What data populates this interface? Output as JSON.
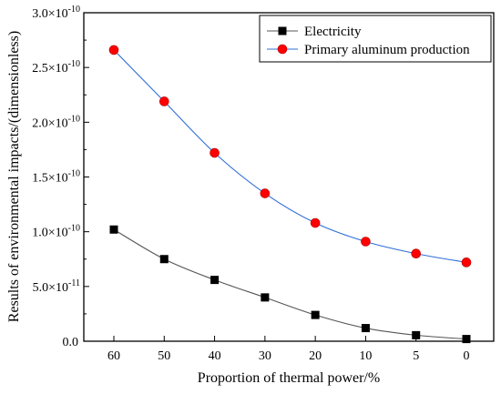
{
  "chart_data": {
    "type": "line",
    "title": "",
    "xlabel": "Proportion of thermal power/%",
    "ylabel": "Results of environmental impacts/(dimensionless)",
    "categories": [
      "60",
      "50",
      "40",
      "30",
      "20",
      "10",
      "5",
      "0"
    ],
    "ylim": [
      0,
      3e-10
    ],
    "yticks": [
      {
        "value": 0,
        "label": "0.0"
      },
      {
        "value": 5e-11,
        "mantissa": "5.0",
        "exp": "-11"
      },
      {
        "value": 1e-10,
        "mantissa": "1.0",
        "exp": "-10"
      },
      {
        "value": 1.5e-10,
        "mantissa": "1.5",
        "exp": "-10"
      },
      {
        "value": 2e-10,
        "mantissa": "2.0",
        "exp": "-10"
      },
      {
        "value": 2.5e-10,
        "mantissa": "2.5",
        "exp": "-10"
      },
      {
        "value": 3e-10,
        "mantissa": "3.0",
        "exp": "-10"
      }
    ],
    "legend_position": "top-right",
    "grid": false,
    "series": [
      {
        "name": "Electricity",
        "marker": "square",
        "marker_color": "#000000",
        "line_color": "#555555",
        "values": [
          1.02e-10,
          7.5e-11,
          5.6e-11,
          4e-11,
          2.4e-11,
          1.2e-11,
          5.5e-12,
          2e-12
        ]
      },
      {
        "name": "Primary aluminum production",
        "marker": "circle",
        "marker_color": "#ff0000",
        "line_color": "#2f6fd6",
        "values": [
          2.66e-10,
          2.19e-10,
          1.72e-10,
          1.35e-10,
          1.08e-10,
          9.1e-11,
          8e-11,
          7.2e-11
        ]
      }
    ]
  }
}
